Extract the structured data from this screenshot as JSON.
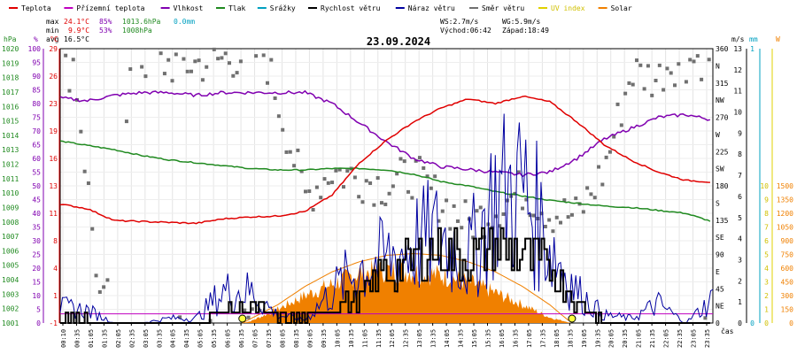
{
  "chart_data": {
    "type": "line",
    "title": "23.09.2024",
    "legend": [
      {
        "label": "Teplota",
        "color": "#e00000"
      },
      {
        "label": "Přízemní teplota",
        "color": "#c000c0"
      },
      {
        "label": "Vlhkost",
        "color": "#8000b0"
      },
      {
        "label": "Tlak",
        "color": "#208a20"
      },
      {
        "label": "Srážky",
        "color": "#00a0c0"
      },
      {
        "label": "Rychlost větru",
        "color": "#000000"
      },
      {
        "label": "Náraz větru",
        "color": "#0000a0"
      },
      {
        "label": "Směr větru",
        "color": "#707070"
      },
      {
        "label": "UV index",
        "color": "#e0d000"
      },
      {
        "label": "Solar",
        "color": "#f08000"
      }
    ],
    "stats": {
      "max_label": "max",
      "max_temp": "24.1°C",
      "max_hum": "85%",
      "max_press": "1013.6hPa",
      "precip": "0.0mm",
      "min_label": "min",
      "min_temp": "9.9°C",
      "min_hum": "53%",
      "min_press": "1008hPa",
      "avg_label": "avg",
      "avg_temp": "16.5°C",
      "ws": "WS:2.7m/s",
      "wg": "WG:5.9m/s",
      "sunrise": "Východ:06:42",
      "sunset": "Západ:18:49"
    },
    "axes": {
      "hpa_unit": "hPa",
      "hpa_ticks": [
        "1020",
        "1019",
        "1018",
        "1017",
        "1016",
        "1015",
        "1014",
        "1013",
        "1012",
        "1011",
        "1010",
        "1009",
        "1008",
        "1007",
        "1006",
        "1005",
        "1004",
        "1003",
        "1002",
        "1001"
      ],
      "pct_unit": "%",
      "pct_ticks": [
        "100",
        "95",
        "90",
        "85",
        "80",
        "75",
        "70",
        "65",
        "60",
        "55",
        "50",
        "45",
        "40",
        "35",
        "30",
        "25",
        "20",
        "15",
        "10",
        "5",
        "0"
      ],
      "c_unit": "°C",
      "c_ticks": [
        "29",
        "26",
        "23",
        "19",
        "16",
        "13",
        "11",
        "8",
        "4",
        "1",
        "-1"
      ],
      "dir_ticks": [
        "360",
        "N",
        "315",
        "NW",
        "270",
        "W",
        "225",
        "SW",
        "180",
        "S",
        "135",
        "SE",
        "90",
        "E",
        "45",
        "NE",
        "0"
      ],
      "ms_unit": "m/s",
      "ms_ticks": [
        "13",
        "12",
        "11",
        "10",
        "9",
        "8",
        "7",
        "6",
        "5",
        "4",
        "3",
        "2",
        "1",
        "0"
      ],
      "mm_unit": "mm",
      "mm_ticks": [
        "1",
        "0"
      ],
      "w_unit": "W",
      "w_ticks": [
        "1500",
        "1350",
        "1200",
        "1050",
        "900",
        "750",
        "600",
        "450",
        "300",
        "150",
        "0"
      ],
      "uv_ticks": [
        "10",
        "9",
        "8",
        "7",
        "6",
        "5",
        "4",
        "3",
        "2",
        "1",
        "0"
      ],
      "x_label": "čas",
      "x_ticks": [
        "00:10",
        "00:35",
        "01:05",
        "01:35",
        "02:05",
        "02:35",
        "03:05",
        "03:35",
        "04:05",
        "04:35",
        "05:05",
        "05:35",
        "06:05",
        "06:35",
        "07:05",
        "07:35",
        "08:05",
        "08:35",
        "09:05",
        "09:35",
        "10:05",
        "10:35",
        "11:05",
        "11:35",
        "12:05",
        "12:35",
        "13:05",
        "13:35",
        "14:05",
        "14:35",
        "15:05",
        "15:35",
        "16:05",
        "16:35",
        "17:05",
        "17:35",
        "18:05",
        "18:35",
        "19:05",
        "19:35",
        "20:05",
        "20:35",
        "21:05",
        "21:35",
        "22:05",
        "22:35",
        "23:05",
        "23:35"
      ]
    },
    "series": [
      {
        "name": "Teplota",
        "unit": "°C",
        "x": [
          0,
          1,
          2,
          3,
          4,
          5,
          6,
          7,
          8,
          9,
          10,
          11,
          12,
          13,
          14,
          15,
          16,
          17,
          18,
          19,
          20,
          21,
          22,
          23,
          24
        ],
        "values": [
          12.0,
          11.5,
          10.2,
          10.1,
          10.0,
          9.9,
          10.4,
          10.6,
          10.7,
          11.2,
          13.0,
          16.5,
          19.0,
          21.0,
          22.5,
          23.5,
          23.0,
          23.8,
          23.2,
          21.0,
          18.5,
          16.8,
          15.5,
          14.6,
          14.4
        ]
      },
      {
        "name": "Vlhkost",
        "unit": "%",
        "x": [
          0,
          1,
          2,
          3,
          4,
          5,
          6,
          7,
          8,
          9,
          10,
          11,
          12,
          13,
          14,
          15,
          16,
          17,
          18,
          19,
          20,
          21,
          22,
          23,
          24
        ],
        "values": [
          82,
          81,
          83,
          84,
          84,
          83,
          84,
          84,
          84,
          84,
          80,
          73,
          66,
          60,
          57,
          56,
          55,
          54,
          55,
          60,
          67,
          71,
          75,
          76,
          74
        ]
      },
      {
        "name": "Tlak",
        "unit": "hPa",
        "x": [
          0,
          1,
          2,
          3,
          4,
          5,
          6,
          7,
          8,
          9,
          10,
          11,
          12,
          13,
          14,
          15,
          16,
          17,
          18,
          19,
          20,
          21,
          22,
          23,
          24
        ],
        "values": [
          1013.6,
          1013.3,
          1013.0,
          1012.6,
          1012.3,
          1012.1,
          1011.9,
          1011.7,
          1011.6,
          1011.6,
          1011.7,
          1011.7,
          1011.6,
          1011.3,
          1010.8,
          1010.5,
          1010.1,
          1009.8,
          1009.5,
          1009.3,
          1009.1,
          1009.0,
          1008.8,
          1008.6,
          1008.0
        ]
      },
      {
        "name": "Rychlost větru",
        "unit": "m/s",
        "x": [
          0,
          1,
          2,
          3,
          4,
          5,
          6,
          7,
          8,
          9,
          10,
          11,
          12,
          13,
          14,
          15,
          16,
          17,
          18,
          19,
          20,
          21,
          22,
          23,
          24
        ],
        "values": [
          0.3,
          0.2,
          0,
          0,
          0,
          0,
          0.5,
          0.8,
          0.3,
          0.2,
          0.8,
          1.2,
          2.5,
          3.0,
          3.5,
          3.2,
          3.6,
          3.3,
          2.6,
          0.8,
          0.2,
          0.1,
          0,
          0,
          0
        ]
      },
      {
        "name": "Náraz větru",
        "unit": "m/s",
        "x": [
          0,
          1,
          2,
          3,
          4,
          5,
          6,
          7,
          8,
          9,
          10,
          11,
          12,
          13,
          14,
          15,
          16,
          17,
          18,
          19,
          20,
          21,
          22,
          23,
          24
        ],
        "values": [
          1.0,
          0.8,
          0,
          0,
          0.3,
          0.3,
          2.0,
          2.0,
          0.5,
          0.2,
          2.0,
          3.5,
          4.0,
          5.0,
          5.5,
          4.0,
          8.0,
          8.5,
          5.0,
          2.0,
          0.5,
          0.3,
          1.2,
          0,
          1.5
        ]
      },
      {
        "name": "Solar",
        "unit": "W",
        "x": [
          6.7,
          7,
          8,
          9,
          10,
          11,
          12,
          13,
          14,
          15,
          16,
          17,
          18,
          18.8
        ],
        "values": [
          0,
          20,
          150,
          300,
          420,
          550,
          580,
          560,
          520,
          450,
          330,
          200,
          60,
          0
        ]
      }
    ],
    "solar_clear_sky": {
      "x": [
        6.7,
        8,
        9,
        10,
        11,
        12,
        13,
        14,
        15,
        16,
        17,
        18,
        18.8
      ],
      "values": [
        0,
        200,
        400,
        560,
        670,
        740,
        760,
        740,
        670,
        560,
        400,
        200,
        0
      ]
    },
    "wind_direction_deg": {
      "x": [
        0.3,
        0.5,
        1.5,
        2,
        2.5,
        3,
        4,
        5,
        6.5,
        7.5,
        9,
        10,
        11,
        12,
        13,
        14,
        15,
        16,
        17,
        18,
        19,
        20,
        21,
        22,
        22.3,
        23.8
      ],
      "values": [
        330,
        345,
        20,
        40,
        315,
        345,
        340,
        340,
        350,
        355,
        165,
        200,
        190,
        180,
        195,
        160,
        130,
        150,
        175,
        145,
        140,
        200,
        330,
        320,
        340,
        350
      ]
    }
  }
}
